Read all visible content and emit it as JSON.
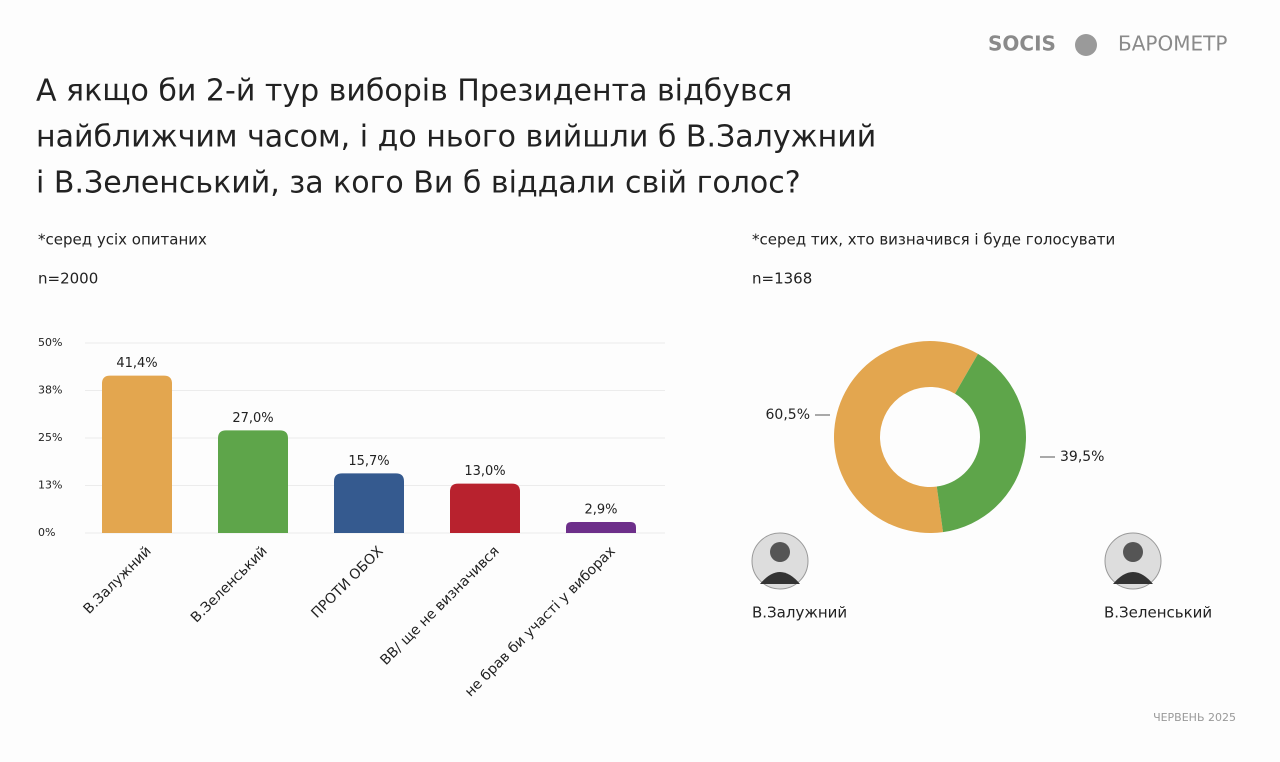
{
  "header": {
    "logo": "SOCIS",
    "brand": "БАРОМЕТР"
  },
  "title_lines": [
    "А якщо би 2-й тур виборів Президента відбувся",
    "найближчим часом, і до нього вийшли б В.Залужний",
    "і В.Зеленський, за кого Ви б віддали свій голос?"
  ],
  "footer": "ЧЕРВЕНЬ 2025",
  "chart_data": [
    {
      "type": "bar",
      "subtitle": "*серед усіх опитаних",
      "note": "n=2000",
      "categories": [
        "В.Залужний",
        "В.Зеленський",
        "ПРОТИ ОБОХ",
        "ВВ/ ще не визначився",
        "не брав би участі у виборах"
      ],
      "values": [
        41.4,
        27.0,
        15.7,
        13.0,
        2.9
      ],
      "value_labels": [
        "41,4%",
        "27,0%",
        "15,7%",
        "13,0%",
        "2,9%"
      ],
      "colors": [
        "#e3a64f",
        "#5ea54a",
        "#355a8f",
        "#b8222e",
        "#6d2f8a"
      ],
      "ylim": [
        0,
        50
      ],
      "yticks": [
        {
          "value": 0,
          "label": "0%"
        },
        {
          "value": 12.5,
          "label": "13%"
        },
        {
          "value": 25,
          "label": "25%"
        },
        {
          "value": 37.5,
          "label": "38%"
        },
        {
          "value": 50,
          "label": "50%"
        }
      ],
      "grid": true
    },
    {
      "type": "donut",
      "subtitle": "*серед тих, хто визначився і буде голосувати",
      "note": "n=1368",
      "categories": [
        "В.Залужний",
        "В.Зеленський"
      ],
      "values": [
        60.5,
        39.5
      ],
      "value_labels": [
        "60,5%",
        "39,5%"
      ],
      "colors": [
        "#e3a64f",
        "#5ea54a"
      ]
    }
  ]
}
